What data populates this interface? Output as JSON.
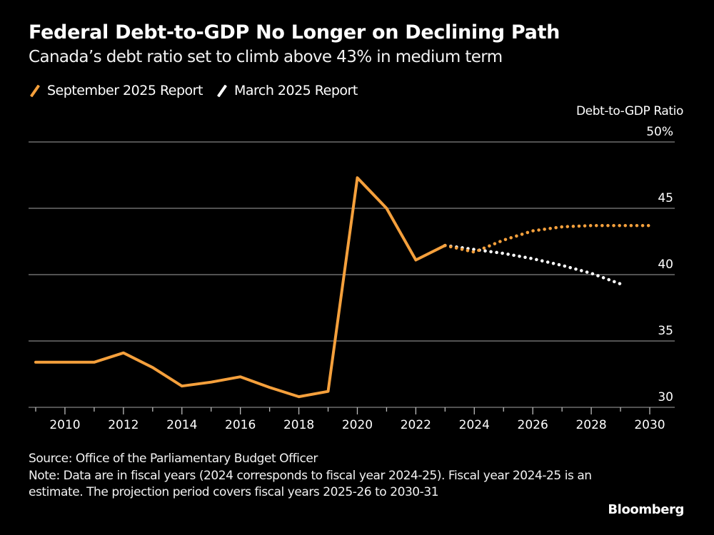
{
  "header": {
    "title": "Federal Debt-to-GDP No Longer on Declining Path",
    "subtitle": "Canada’s debt ratio set to climb above 43% in medium term"
  },
  "legend": [
    {
      "label": "September 2025 Report",
      "color": "#f5a03c"
    },
    {
      "label": "March 2025 Report",
      "color": "#ffffff"
    }
  ],
  "footer": {
    "source": "Source: Office of the Parliamentary Budget Officer",
    "note": "Note: Data are in fiscal years (2024 corresponds to fiscal year 2024-25). Fiscal year 2024-25 is an estimate. The projection period covers fiscal years 2025-26 to 2030-31",
    "brand": "Bloomberg"
  },
  "chart_data": {
    "type": "line",
    "title": "Federal Debt-to-GDP No Longer on Declining Path",
    "subtitle": "Canada’s debt ratio set to climb above 43% in medium term",
    "xlabel": "",
    "ylabel": "Debt-to-GDP Ratio",
    "xlim": [
      2009,
      2030
    ],
    "ylim": [
      30,
      50
    ],
    "x_ticks": [
      2010,
      2012,
      2014,
      2016,
      2018,
      2020,
      2022,
      2024,
      2026,
      2028,
      2030
    ],
    "x_tick_labels": [
      "2010",
      "2012",
      "2014",
      "2016",
      "2018",
      "2020",
      "2022",
      "2024",
      "2026",
      "2028",
      "2030"
    ],
    "y_ticks": [
      30,
      35,
      40,
      45,
      50
    ],
    "y_tick_labels": [
      "30",
      "35",
      "40",
      "45",
      "50%"
    ],
    "grid": true,
    "y_axis_side": "right",
    "legend_position": "top-left",
    "series": [
      {
        "name": "September 2025 Report",
        "color": "#f5a03c",
        "style": "solid",
        "x": [
          2009,
          2010,
          2011,
          2012,
          2013,
          2014,
          2015,
          2016,
          2017,
          2018,
          2019,
          2020,
          2021,
          2022,
          2023
        ],
        "values": [
          33.4,
          33.4,
          33.4,
          34.1,
          33.0,
          31.6,
          31.9,
          32.3,
          31.5,
          30.8,
          31.2,
          47.3,
          45.0,
          41.1,
          42.2
        ]
      },
      {
        "name": "September 2025 Report (projection)",
        "color": "#f5a03c",
        "style": "dotted",
        "x": [
          2023,
          2024,
          2025,
          2026,
          2027,
          2028,
          2029,
          2030
        ],
        "values": [
          42.2,
          41.7,
          42.6,
          43.3,
          43.6,
          43.7,
          43.7,
          43.7
        ]
      },
      {
        "name": "March 2025 Report",
        "color": "#ffffff",
        "style": "dotted",
        "x": [
          2023,
          2024,
          2025,
          2026,
          2027,
          2028,
          2029
        ],
        "values": [
          42.2,
          41.9,
          41.6,
          41.2,
          40.7,
          40.1,
          39.3
        ]
      }
    ]
  }
}
